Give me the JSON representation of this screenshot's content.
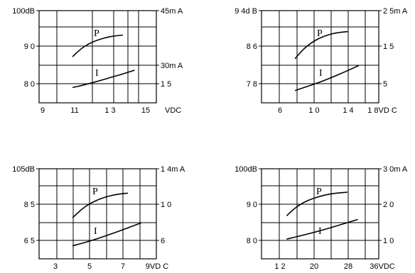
{
  "chart_data": [
    {
      "type": "line",
      "xlim": [
        9,
        16
      ],
      "ylim": [
        77,
        100
      ],
      "y2lim": [
        3.5,
        45
      ],
      "x_ticks": [
        "9",
        "11",
        "1 3",
        "15"
      ],
      "x_unit": "VDC",
      "y_ticks": [
        "100dB",
        "9 0",
        "8 0"
      ],
      "y2_ticks": [
        "45m A",
        "30m A",
        "1 5"
      ],
      "series": [
        {
          "name": "P",
          "axis": "left",
          "x": [
            11,
            11.5,
            12,
            12.5,
            13,
            13.5,
            14
          ],
          "y": [
            88.5,
            90.5,
            91.8,
            92.7,
            93.3,
            93.7,
            93.9
          ]
        },
        {
          "name": "I",
          "axis": "right",
          "x": [
            11,
            11.5,
            12,
            12.5,
            13,
            13.5,
            14,
            14.7
          ],
          "y": [
            10.4,
            11.2,
            12.2,
            13.2,
            14.3,
            15.4,
            16.5,
            18.2
          ]
        }
      ]
    },
    {
      "type": "line",
      "xlim": [
        4,
        18
      ],
      "ylim": [
        76,
        94
      ],
      "y2lim": [
        1,
        25
      ],
      "x_ticks": [
        "6",
        "1 0",
        "1 4",
        "1 8VD C"
      ],
      "x_unit": "",
      "y_ticks": [
        "9 4d B",
        "8 6",
        "7 8"
      ],
      "y2_ticks": [
        "2 5m A",
        "1 5",
        "5"
      ],
      "series": [
        {
          "name": "P",
          "axis": "left",
          "x": [
            8,
            9,
            10,
            11,
            12,
            13,
            14.3
          ],
          "y": [
            84.6,
            86.5,
            87.8,
            88.7,
            89.3,
            89.7,
            89.9
          ]
        },
        {
          "name": "I",
          "axis": "right",
          "x": [
            8,
            9.5,
            11,
            12.5,
            14,
            15.6
          ],
          "y": [
            4.2,
            5.3,
            6.4,
            7.7,
            9.1,
            10.7
          ]
        }
      ]
    },
    {
      "type": "line",
      "xlim": [
        2,
        9
      ],
      "ylim": [
        60,
        105
      ],
      "y2lim": [
        5,
        14
      ],
      "x_ticks": [
        "3",
        "5",
        "7",
        "9VD C"
      ],
      "x_unit": "",
      "y_ticks": [
        "105dB",
        "8 5",
        "6 5"
      ],
      "y2_ticks": [
        "1 4m A",
        "1 0",
        "6"
      ],
      "series": [
        {
          "name": "P",
          "axis": "left",
          "x": [
            4,
            4.5,
            5,
            5.5,
            6,
            6.5,
            7,
            7.3
          ],
          "y": [
            80.5,
            84.5,
            87.5,
            89.5,
            91,
            92,
            92.6,
            92.8
          ]
        },
        {
          "name": "I",
          "axis": "right",
          "x": [
            4,
            5,
            6,
            7,
            8.1
          ],
          "y": [
            6.3,
            6.75,
            7.3,
            7.9,
            8.6
          ]
        }
      ]
    },
    {
      "type": "line",
      "xlim": [
        8,
        36
      ],
      "ylim": [
        77,
        100
      ],
      "y2lim": [
        3,
        30
      ],
      "x_ticks": [
        "1 2",
        "20",
        "28",
        "36VDC"
      ],
      "x_unit": "",
      "y_ticks": [
        "100dB",
        "9 0",
        "8 0"
      ],
      "y2_ticks": [
        "3 0m A",
        "2 0",
        "1 0"
      ],
      "series": [
        {
          "name": "P",
          "axis": "left",
          "x": [
            14,
            16,
            18,
            20,
            22,
            24,
            26,
            28.5
          ],
          "y": [
            88,
            90,
            91.4,
            92.3,
            93,
            93.5,
            93.8,
            94
          ]
        },
        {
          "name": "I",
          "axis": "right",
          "x": [
            14,
            18,
            22,
            26,
            31
          ],
          "y": [
            8.9,
            10.1,
            11.4,
            12.9,
            14.8
          ]
        }
      ]
    }
  ]
}
